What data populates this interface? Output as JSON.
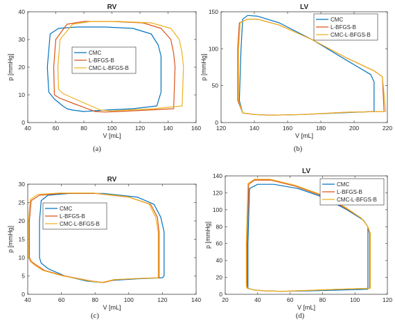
{
  "colors": {
    "CMC": "#0072BD",
    "L-BFGS-B": "#D95319",
    "CMC-L-BFGS-B": "#EDB120"
  },
  "chart_data": [
    {
      "type": "line",
      "title": "RV",
      "xlabel": "V [mL]",
      "ylabel": "p [mmHg]",
      "caption": "(a)",
      "xlim": [
        40,
        160
      ],
      "ylim": [
        0,
        40
      ],
      "xticks": [
        40,
        60,
        80,
        100,
        120,
        140,
        160
      ],
      "yticks": [
        0,
        10,
        20,
        30,
        40
      ],
      "legend": "center",
      "series": [
        {
          "name": "CMC",
          "x": [
            55,
            54,
            56,
            62,
            75,
            95,
            115,
            128,
            133,
            135,
            135,
            132,
            115,
            95,
            80,
            72,
            68,
            65,
            59,
            55
          ],
          "y": [
            11,
            20,
            32,
            34,
            34.5,
            34.5,
            34,
            32,
            28,
            24,
            11,
            6,
            5,
            4.5,
            4,
            4.5,
            5,
            6,
            8.5,
            11
          ]
        },
        {
          "name": "L-BFGS-B",
          "x": [
            59,
            58.5,
            60,
            68,
            80,
            100,
            122,
            135,
            142,
            144,
            145,
            144,
            125,
            105,
            95,
            88,
            72,
            62,
            59
          ],
          "y": [
            10,
            20,
            30,
            35.5,
            36.5,
            36.5,
            36,
            34,
            30,
            25,
            20,
            5,
            4.5,
            4,
            3.8,
            4,
            7,
            9,
            10
          ]
        },
        {
          "name": "CMC-L-BFGS-B",
          "x": [
            62,
            61.5,
            63,
            72,
            85,
            105,
            128,
            142,
            148,
            150,
            151,
            150,
            130,
            110,
            100,
            92,
            76,
            65,
            62
          ],
          "y": [
            12,
            20,
            30,
            35.5,
            36.5,
            36.5,
            36,
            34,
            30,
            25,
            20,
            6,
            5,
            4.5,
            4.2,
            4.5,
            8,
            10.5,
            12
          ]
        }
      ]
    },
    {
      "type": "line",
      "title": "LV",
      "xlabel": "V [mL]",
      "ylabel": "p [mmHg]",
      "caption": "(b)",
      "xlim": [
        120,
        220
      ],
      "ylim": [
        0,
        150
      ],
      "xticks": [
        120,
        140,
        160,
        180,
        200,
        220
      ],
      "yticks": [
        0,
        50,
        100,
        150
      ],
      "legend": "top-right",
      "series": [
        {
          "name": "CMC",
          "x": [
            131,
            132,
            133,
            136,
            142,
            155,
            175,
            195,
            210,
            212,
            212,
            190,
            170,
            150,
            140,
            133,
            131
          ],
          "y": [
            30,
            100,
            140,
            145,
            144,
            135,
            112,
            85,
            65,
            55,
            15,
            13,
            11,
            10,
            11,
            13,
            30
          ]
        },
        {
          "name": "L-BFGS-B",
          "x": [
            130,
            130,
            131,
            136,
            142,
            155,
            175,
            195,
            212,
            217,
            218,
            195,
            170,
            150,
            140,
            133,
            130
          ],
          "y": [
            30,
            100,
            135,
            140,
            140,
            132,
            112,
            88,
            70,
            62,
            15,
            14,
            11,
            10,
            11,
            13,
            30
          ]
        },
        {
          "name": "CMC-L-BFGS-B",
          "x": [
            130.5,
            130.5,
            131.5,
            136,
            142,
            155,
            175,
            195,
            212,
            217,
            219,
            195,
            170,
            150,
            140,
            133,
            130.5
          ],
          "y": [
            30,
            100,
            135,
            140,
            140,
            132,
            112,
            88,
            70,
            62,
            15,
            14,
            11,
            10,
            11,
            13,
            30
          ]
        }
      ]
    },
    {
      "type": "line",
      "title": "RV",
      "xlabel": "V [mL]",
      "ylabel": "p [mmHg]",
      "caption": "(c)",
      "xlim": [
        40,
        140
      ],
      "ylim": [
        0,
        30
      ],
      "xticks": [
        40,
        60,
        80,
        100,
        120,
        140
      ],
      "yticks": [
        0,
        5,
        10,
        15,
        20,
        25,
        30
      ],
      "legend": "center-left",
      "series": [
        {
          "name": "CMC",
          "x": [
            47,
            47,
            48,
            52,
            65,
            85,
            105,
            115,
            119,
            121,
            121,
            120,
            105,
            90,
            84,
            75,
            62,
            52,
            48,
            47
          ],
          "y": [
            10,
            20,
            25.5,
            27,
            27.5,
            27.5,
            26.5,
            24.5,
            21,
            17,
            5,
            4.5,
            4.2,
            3.8,
            3.2,
            3.6,
            5,
            7,
            8.5,
            10
          ]
        },
        {
          "name": "L-BFGS-B",
          "x": [
            41,
            41,
            42,
            47,
            60,
            80,
            100,
            113,
            117,
            118,
            118,
            105,
            92,
            85,
            78,
            62,
            50,
            45,
            42,
            41
          ],
          "y": [
            10,
            20,
            25.5,
            27,
            27.5,
            27.5,
            26.5,
            24.5,
            21,
            17,
            4.5,
            4.3,
            4.0,
            3.2,
            3.6,
            5,
            6.5,
            8,
            9,
            10
          ]
        },
        {
          "name": "CMC-L-BFGS-B",
          "x": [
            40.5,
            40.5,
            41.5,
            46,
            59,
            79,
            99,
            112,
            116,
            117.5,
            117.5,
            104,
            91,
            84,
            77,
            61,
            49,
            44,
            41.5,
            40.5
          ],
          "y": [
            10,
            20,
            25.8,
            27.2,
            27.6,
            27.6,
            26.6,
            24.6,
            21,
            17,
            4.5,
            4.3,
            4.0,
            3.2,
            3.6,
            5,
            6.5,
            8,
            9,
            10
          ]
        }
      ]
    },
    {
      "type": "line",
      "title": "LV",
      "xlabel": "V [mL]",
      "ylabel": "p [mmHg]",
      "caption": "(d)",
      "xlim": [
        20,
        120
      ],
      "ylim": [
        0,
        140
      ],
      "xticks": [
        20,
        40,
        60,
        80,
        100,
        120
      ],
      "yticks": [
        0,
        20,
        40,
        60,
        80,
        100,
        120,
        140
      ],
      "legend": "top-right",
      "series": [
        {
          "name": "CMC",
          "x": [
            34,
            34,
            35,
            40,
            50,
            65,
            80,
            95,
            105,
            108,
            108,
            90,
            70,
            55,
            45,
            38,
            34,
            34
          ],
          "y": [
            10,
            60,
            125,
            130,
            130,
            125,
            115,
            100,
            88,
            80,
            6,
            5,
            4,
            3.5,
            4,
            5,
            7,
            10
          ]
        },
        {
          "name": "L-BFGS-B",
          "x": [
            33.5,
            33.5,
            34.5,
            38,
            48,
            63,
            79,
            94,
            104,
            108,
            109,
            109,
            90,
            70,
            55,
            45,
            38,
            34,
            33.5
          ],
          "y": [
            10,
            60,
            130,
            135,
            135,
            128,
            117,
            102,
            90,
            80,
            72,
            7,
            6,
            4.5,
            3.5,
            4,
            5,
            7,
            10
          ]
        },
        {
          "name": "CMC-L-BFGS-B",
          "x": [
            33,
            33,
            34,
            38,
            48,
            63,
            79,
            94,
            104,
            108,
            109.5,
            109.5,
            90,
            70,
            55,
            45,
            38,
            33.5,
            33
          ],
          "y": [
            10,
            60,
            131,
            136,
            136,
            129,
            118,
            103,
            90,
            80,
            72,
            7,
            6,
            4.5,
            3.5,
            4,
            5,
            7,
            10
          ]
        }
      ]
    }
  ]
}
